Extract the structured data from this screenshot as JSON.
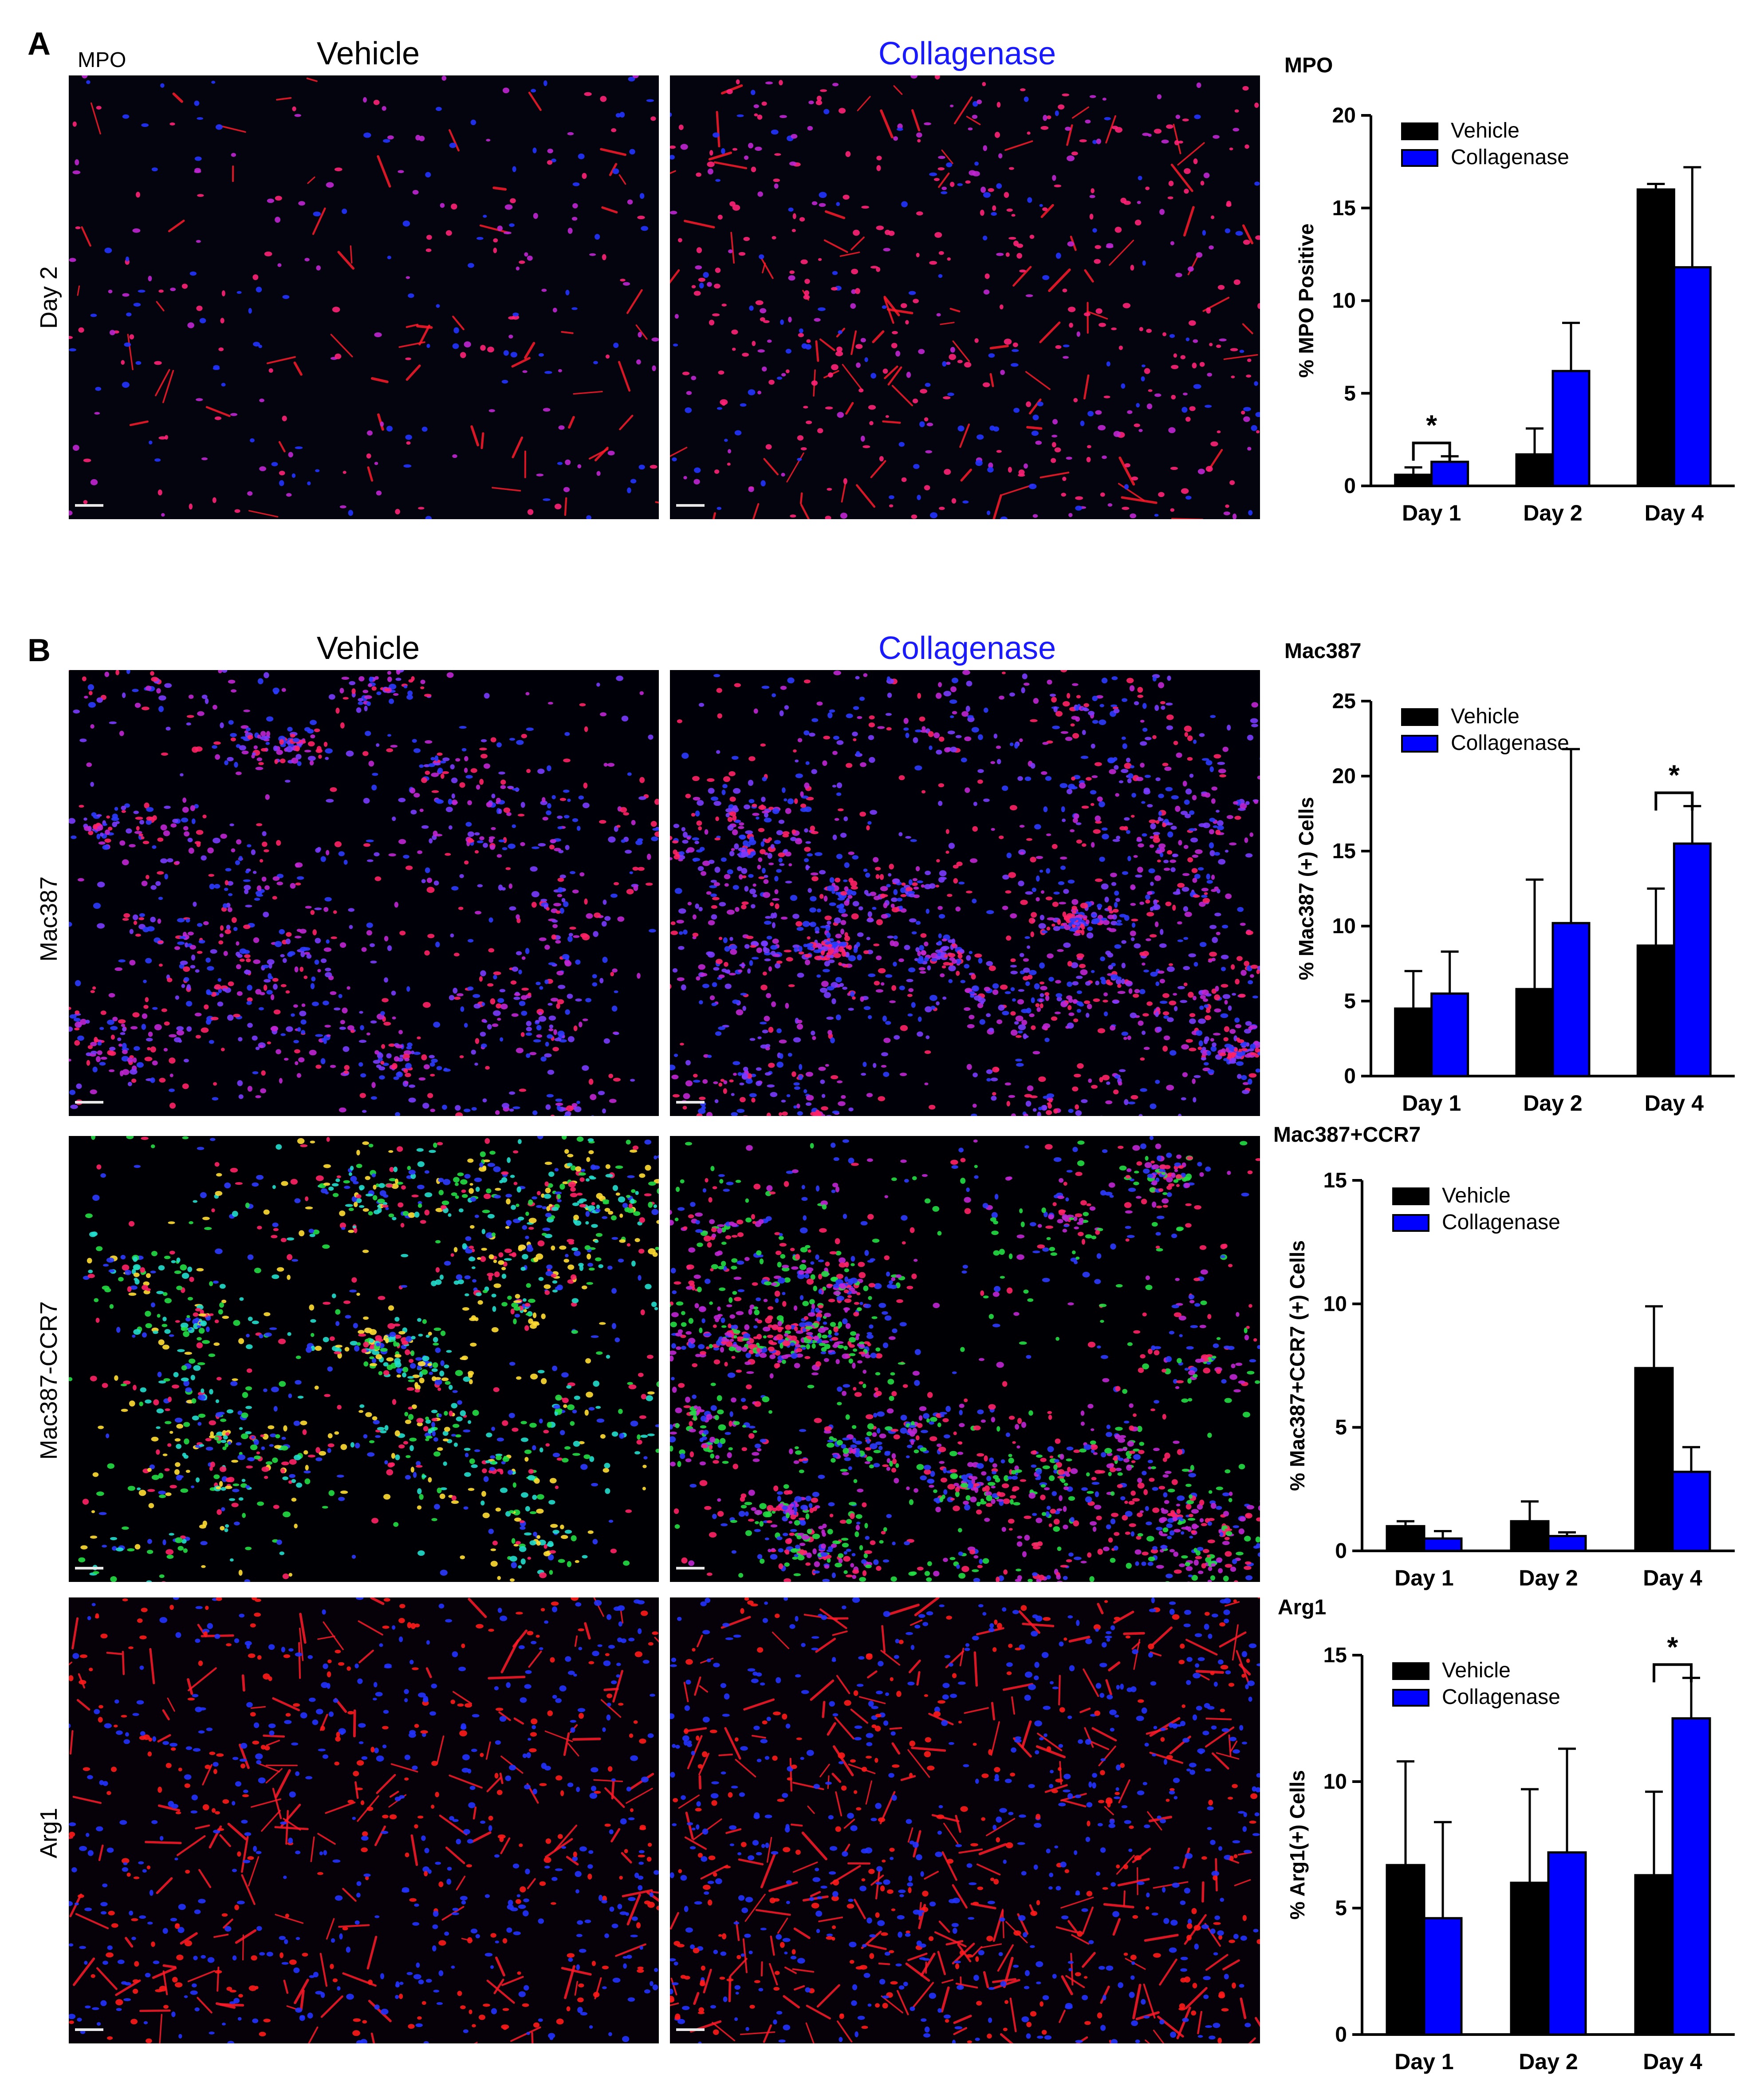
{
  "panel_a": {
    "letter": "A",
    "stain_label": "MPO",
    "col_vehicle": "Vehicle",
    "col_collagenase": "Collagenase",
    "row_label": "Day 2"
  },
  "panel_b": {
    "letter": "B",
    "col_vehicle": "Vehicle",
    "col_collagenase": "Collagenase",
    "rows": [
      "Mac387",
      "Mac387-CCR7",
      "Arg1"
    ]
  },
  "colors": {
    "vehicle": "#000000",
    "collagenase": "#0000ff",
    "collagenase_heading": "#1a1aff"
  },
  "chart_data": [
    {
      "type": "bar",
      "title": "MPO",
      "ylabel": "% MPO Positive",
      "categories": [
        "Day 1",
        "Day 2",
        "Day 4"
      ],
      "series": [
        {
          "name": "Vehicle",
          "values": [
            0.6,
            1.7,
            16.0
          ],
          "errors": [
            0.4,
            1.4,
            0.3
          ]
        },
        {
          "name": "Collagenase",
          "values": [
            1.3,
            6.2,
            11.8
          ],
          "errors": [
            0.3,
            2.6,
            5.4
          ]
        }
      ],
      "ylim": [
        0,
        20
      ],
      "yticks": [
        "0",
        "5",
        "10",
        "15",
        "20"
      ],
      "significance": [
        {
          "category": "Day 1",
          "label": "*"
        }
      ],
      "legend": "top-left"
    },
    {
      "type": "bar",
      "title": "Mac387",
      "ylabel": "% Mac387 (+) Cells",
      "categories": [
        "Day 1",
        "Day 2",
        "Day 4"
      ],
      "series": [
        {
          "name": "Vehicle",
          "values": [
            4.5,
            5.8,
            8.7
          ],
          "errors": [
            2.5,
            7.3,
            3.8
          ]
        },
        {
          "name": "Collagenase",
          "values": [
            5.5,
            10.2,
            15.5
          ],
          "errors": [
            2.8,
            11.6,
            2.5
          ]
        }
      ],
      "ylim": [
        0,
        25
      ],
      "yticks": [
        "0",
        "5",
        "10",
        "15",
        "20",
        "25"
      ],
      "significance": [
        {
          "category": "Day 4",
          "label": "*"
        }
      ],
      "legend": "top-left"
    },
    {
      "type": "bar",
      "title": "Mac387+CCR7",
      "ylabel": "% Mac387+CCR7 (+) Cells",
      "categories": [
        "Day 1",
        "Day 2",
        "Day 4"
      ],
      "series": [
        {
          "name": "Vehicle",
          "values": [
            1.0,
            1.2,
            7.4
          ],
          "errors": [
            0.2,
            0.8,
            2.5
          ]
        },
        {
          "name": "Collagenase",
          "values": [
            0.5,
            0.6,
            3.2
          ],
          "errors": [
            0.3,
            0.15,
            1.0
          ]
        }
      ],
      "ylim": [
        0,
        15
      ],
      "yticks": [
        "0",
        "5",
        "10",
        "15"
      ],
      "significance": [],
      "legend": "top-left"
    },
    {
      "type": "bar",
      "title": "Arg1",
      "ylabel": "% Arg1(+) Cells",
      "categories": [
        "Day 1",
        "Day 2",
        "Day 4"
      ],
      "series": [
        {
          "name": "Vehicle",
          "values": [
            6.7,
            6.0,
            6.3
          ],
          "errors": [
            4.1,
            3.7,
            3.3
          ]
        },
        {
          "name": "Collagenase",
          "values": [
            4.6,
            7.2,
            12.5
          ],
          "errors": [
            3.8,
            4.1,
            1.6
          ]
        }
      ],
      "ylim": [
        0,
        15
      ],
      "yticks": [
        "0",
        "5",
        "10",
        "15"
      ],
      "significance": [
        {
          "category": "Day 4",
          "label": "*"
        }
      ],
      "legend": "top-left"
    }
  ]
}
